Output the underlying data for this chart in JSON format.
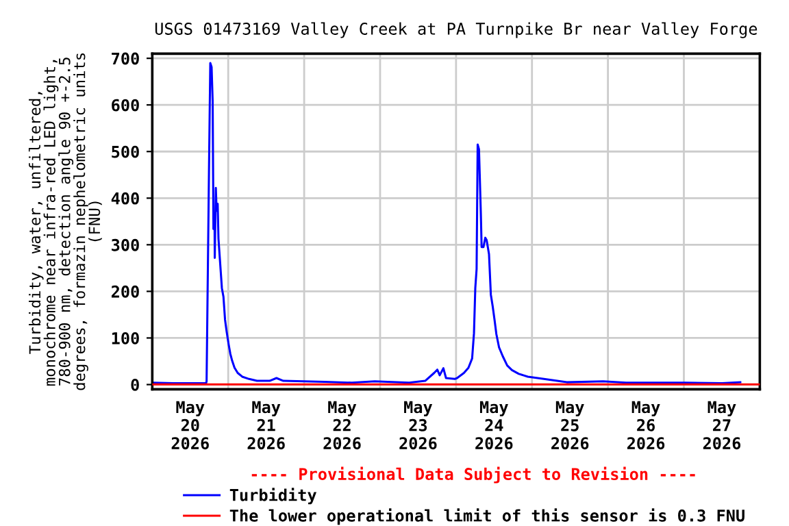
{
  "chart_data": {
    "type": "line",
    "title": "USGS 01473169 Valley Creek at PA Turnpike Br near Valley Forge",
    "ylabel": "Turbidity, water, unfiltered,\nmonochrome near infra-red LED light,\n780-900 nm, detection angle 90 +-2.5\ndegrees, formazin nephelometric units\n(FNU)",
    "annotations": [
      "---- Provisional Data Subject to Revision ----"
    ],
    "x": [
      "2026-05-20T00:00",
      "2026-05-20T06:45",
      "2026-05-20T17:00",
      "2026-05-20T17:10",
      "2026-05-20T17:55",
      "2026-05-20T18:20",
      "2026-05-20T18:45",
      "2026-05-20T19:05",
      "2026-05-20T19:20",
      "2026-05-20T19:40",
      "2026-05-20T19:45",
      "2026-05-20T20:05",
      "2026-05-20T20:20",
      "2026-05-20T20:40",
      "2026-05-20T20:55",
      "2026-05-20T21:25",
      "2026-05-20T22:00",
      "2026-05-20T22:30",
      "2026-05-20T23:00",
      "2026-05-20T23:30",
      "2026-05-21T00:10",
      "2026-05-21T00:40",
      "2026-05-21T01:15",
      "2026-05-21T02:00",
      "2026-05-21T03:00",
      "2026-05-21T04:25",
      "2026-05-21T06:35",
      "2026-05-21T09:05",
      "2026-05-21T13:05",
      "2026-05-21T15:15",
      "2026-05-21T17:25",
      "2026-05-22T06:25",
      "2026-05-22T15:05",
      "2026-05-22T22:20",
      "2026-05-23T09:10",
      "2026-05-23T14:15",
      "2026-05-23T17:05",
      "2026-05-23T18:05",
      "2026-05-23T18:50",
      "2026-05-23T20:00",
      "2026-05-23T20:50",
      "2026-05-23T23:35",
      "2026-05-24T00:20",
      "2026-05-24T02:30",
      "2026-05-24T03:55",
      "2026-05-24T05:05",
      "2026-05-24T05:40",
      "2026-05-24T06:05",
      "2026-05-24T06:30",
      "2026-05-24T06:50",
      "2026-05-24T07:15",
      "2026-05-24T07:30",
      "2026-05-24T07:50",
      "2026-05-24T08:05",
      "2026-05-24T08:40",
      "2026-05-24T09:15",
      "2026-05-24T09:40",
      "2026-05-24T10:25",
      "2026-05-24T11:00",
      "2026-05-24T11:35",
      "2026-05-24T12:10",
      "2026-05-24T12:45",
      "2026-05-24T13:35",
      "2026-05-24T14:45",
      "2026-05-24T16:10",
      "2026-05-24T17:40",
      "2026-05-24T19:50",
      "2026-05-24T22:40",
      "2026-05-25T03:45",
      "2026-05-25T11:00",
      "2026-05-25T22:30",
      "2026-05-26T05:45",
      "2026-05-27T00:30",
      "2026-05-27T12:05",
      "2026-05-27T17:50"
    ],
    "series": [
      {
        "name": "Turbidity",
        "color": "#0000ff",
        "values": [
          4,
          3,
          3,
          7,
          456,
          690,
          681,
          608,
          334,
          368,
          272,
          422,
          373,
          388,
          313,
          264,
          207,
          188,
          139,
          114,
          85,
          66,
          51,
          36,
          25,
          17,
          12,
          8,
          8,
          14,
          8,
          6,
          4,
          7,
          4,
          8,
          25,
          32,
          20,
          35,
          14,
          12,
          14,
          25,
          36,
          56,
          110,
          207,
          248,
          515,
          505,
          447,
          368,
          295,
          295,
          315,
          310,
          280,
          193,
          168,
          139,
          108,
          80,
          61,
          41,
          31,
          23,
          17,
          12,
          5,
          7,
          4,
          4,
          3,
          5
        ]
      }
    ],
    "ref_lines": [
      {
        "axis": "y",
        "value": 0.3,
        "label": "The lower operational limit of this sensor is 0.3 FNU",
        "color": "#ff0000"
      }
    ],
    "xlim": [
      "2026-05-20T00:00",
      "2026-05-28T00:00"
    ],
    "xticks": [
      {
        "value": "2026-05-20T12:00",
        "label": "May\n20\n2026"
      },
      {
        "value": "2026-05-21T00:00",
        "label": null
      },
      {
        "value": "2026-05-21T12:00",
        "label": "May\n21\n2026"
      },
      {
        "value": "2026-05-22T00:00",
        "label": null
      },
      {
        "value": "2026-05-22T12:00",
        "label": "May\n22\n2026"
      },
      {
        "value": "2026-05-23T00:00",
        "label": null
      },
      {
        "value": "2026-05-23T12:00",
        "label": "May\n23\n2026"
      },
      {
        "value": "2026-05-24T00:00",
        "label": null
      },
      {
        "value": "2026-05-24T12:00",
        "label": "May\n24\n2026"
      },
      {
        "value": "2026-05-25T00:00",
        "label": null
      },
      {
        "value": "2026-05-25T12:00",
        "label": "May\n25\n2026"
      },
      {
        "value": "2026-05-26T00:00",
        "label": null
      },
      {
        "value": "2026-05-26T12:00",
        "label": "May\n26\n2026"
      },
      {
        "value": "2026-05-27T00:00",
        "label": null
      },
      {
        "value": "2026-05-27T12:00",
        "label": "May\n27\n2026"
      }
    ],
    "ylim": [
      -10,
      710
    ],
    "yticks": [
      0,
      100,
      200,
      300,
      400,
      500,
      600,
      700
    ],
    "grid": true,
    "legend": "bottom"
  }
}
